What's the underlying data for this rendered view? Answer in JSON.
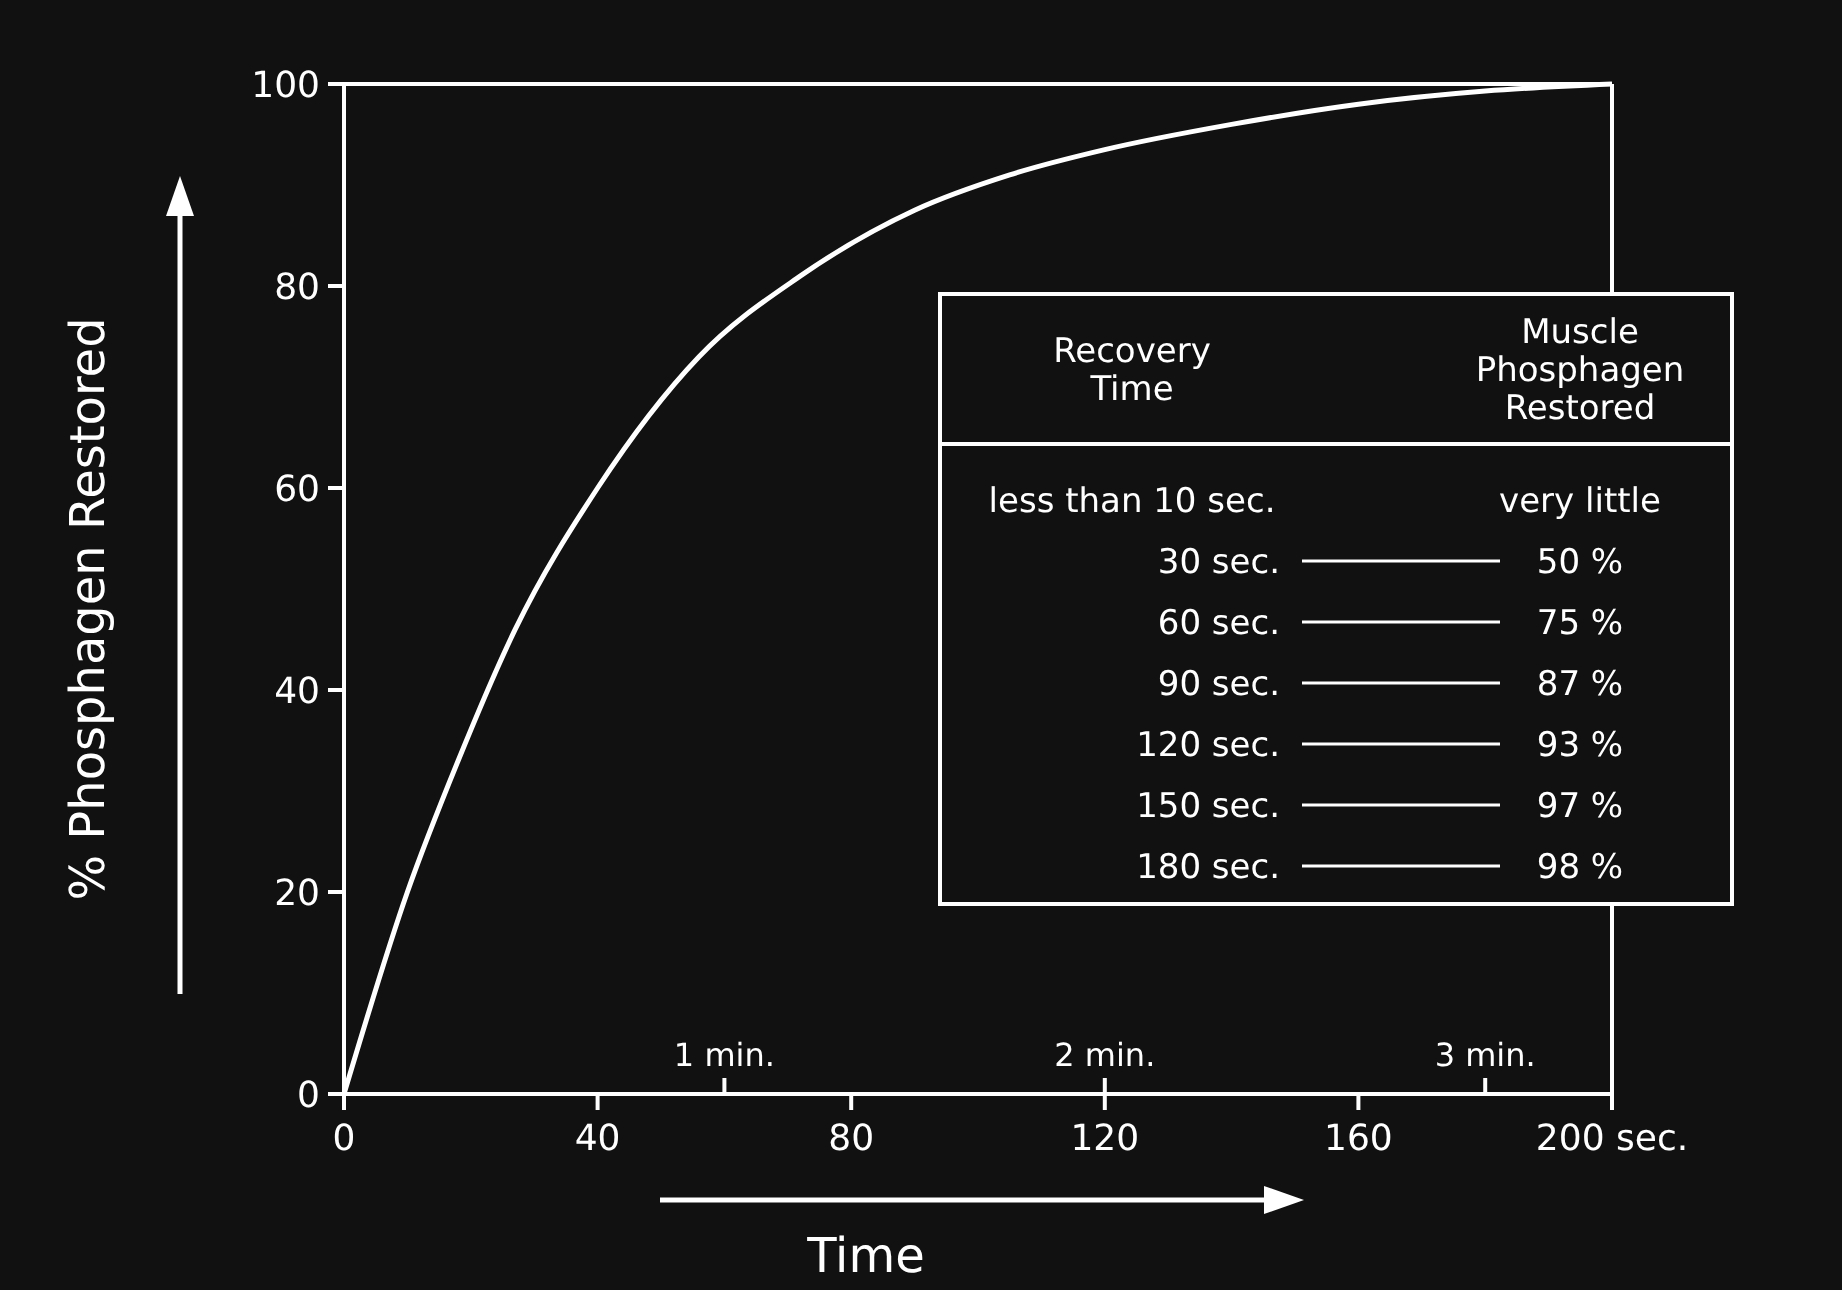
{
  "chart_data": {
    "type": "line",
    "xlabel": "Time",
    "ylabel": "% Phosphagen Restored",
    "xlim": [
      0,
      200
    ],
    "xticks": [
      0,
      40,
      80,
      120,
      160,
      {
        "value": 200,
        "label": "200 sec."
      }
    ],
    "x2lim": [
      0,
      3.3333
    ],
    "x2ticks": [
      {
        "value": 1,
        "label": "1 min."
      },
      {
        "value": 2,
        "label": "2 min."
      },
      {
        "value": 3,
        "label": "3 min."
      }
    ],
    "ylim": [
      0,
      100
    ],
    "yticks": [
      0,
      20,
      40,
      60,
      80,
      100
    ],
    "grid": false,
    "marker": "none",
    "line_style": "solid",
    "series": [
      {
        "color": "#ffffff",
        "x": [
          0,
          10,
          18,
          27,
          40,
          56,
          72,
          90,
          105,
          120,
          140,
          160,
          180,
          200
        ],
        "values": [
          0,
          20,
          33,
          46,
          60,
          73,
          81,
          87.5,
          91,
          93.5,
          96,
          98,
          99.3,
          100
        ]
      }
    ],
    "annotations": [
      "Recovery Time",
      "Muscle Phosphagen Restored",
      "less than 10 sec.",
      "very little",
      "30 sec.",
      "50 %",
      "60 sec.",
      "75 %",
      "90 sec.",
      "87 %",
      "120 sec.",
      "93 %",
      "150 sec.",
      "97 %",
      "180 sec.",
      "98 %"
    ]
  }
}
